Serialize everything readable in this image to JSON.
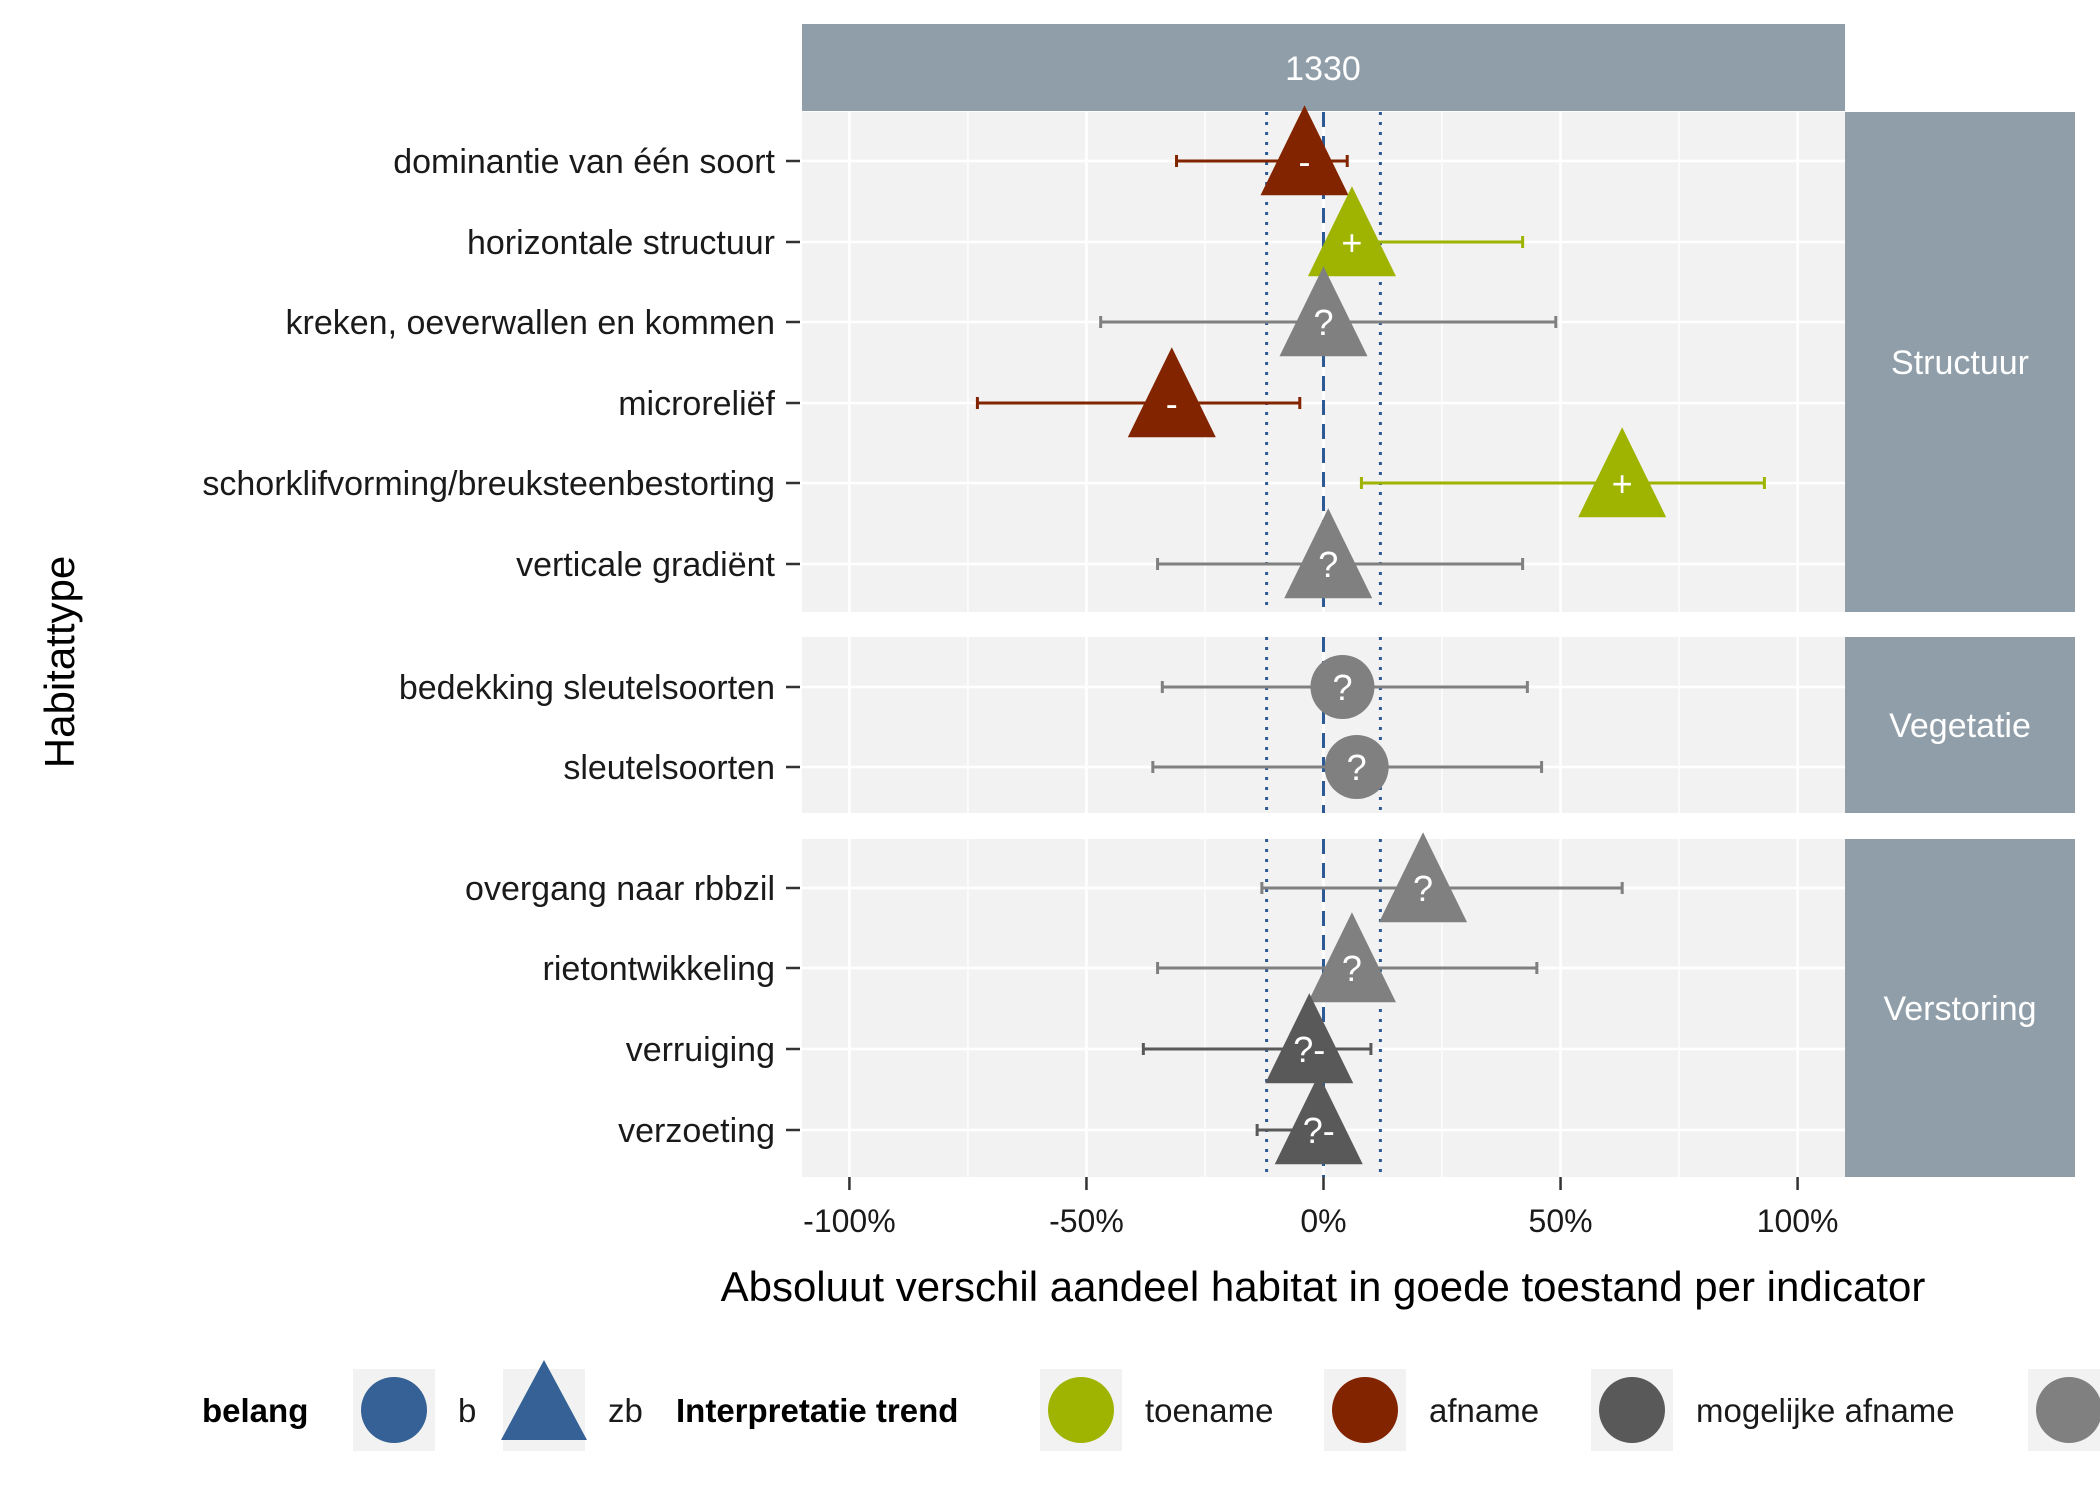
{
  "chart_data": {
    "type": "scatter",
    "facet_label": "1330",
    "xlabel": "Absoluut verschil aandeel habitat in goede toestand per indicator",
    "ylabel": "Habitattype",
    "xlim": [
      -110,
      110
    ],
    "x_ticks": [
      -100,
      -50,
      0,
      50,
      100
    ],
    "x_tick_labels": [
      "-100%",
      "-50%",
      "0%",
      "50%",
      "100%"
    ],
    "reference_lines": {
      "zero": 0,
      "dotted": [
        -12,
        12
      ]
    },
    "colors": {
      "toename": "#9fb400",
      "afname": "#822400",
      "mogelijke afname": "#595959",
      "onbekend": "#808080",
      "belang": "#356196",
      "strip": "#8f9ea9",
      "panel": "#f2f2f2",
      "refline": "#2d5a95"
    },
    "groups": [
      {
        "name": "Structuur",
        "rows": [
          {
            "label": "dominantie van één soort",
            "x": -4,
            "lo": -31,
            "hi": 5,
            "belang": "zb",
            "trend": "afname",
            "symbol": "-"
          },
          {
            "label": "horizontale structuur",
            "x": 6,
            "lo": 6,
            "hi": 42,
            "belang": "zb",
            "trend": "toename",
            "symbol": "+"
          },
          {
            "label": "kreken, oeverwallen en kommen",
            "x": 0,
            "lo": -47,
            "hi": 49,
            "belang": "zb",
            "trend": "onbekend",
            "symbol": "?"
          },
          {
            "label": "microreliëf",
            "x": -32,
            "lo": -73,
            "hi": -5,
            "belang": "zb",
            "trend": "afname",
            "symbol": "-"
          },
          {
            "label": "schorklifvorming/breuksteenbestorting",
            "x": 63,
            "lo": 8,
            "hi": 93,
            "belang": "zb",
            "trend": "toename",
            "symbol": "+"
          },
          {
            "label": "verticale gradiënt",
            "x": 1,
            "lo": -35,
            "hi": 42,
            "belang": "zb",
            "trend": "onbekend",
            "symbol": "?"
          }
        ]
      },
      {
        "name": "Vegetatie",
        "rows": [
          {
            "label": "bedekking sleutelsoorten",
            "x": 4,
            "lo": -34,
            "hi": 43,
            "belang": "b",
            "trend": "onbekend",
            "symbol": "?"
          },
          {
            "label": "sleutelsoorten",
            "x": 7,
            "lo": -36,
            "hi": 46,
            "belang": "b",
            "trend": "onbekend",
            "symbol": "?"
          }
        ]
      },
      {
        "name": "Verstoring",
        "rows": [
          {
            "label": "overgang naar rbbzil",
            "x": 21,
            "lo": -13,
            "hi": 63,
            "belang": "zb",
            "trend": "onbekend",
            "symbol": "?"
          },
          {
            "label": "rietontwikkeling",
            "x": 6,
            "lo": -35,
            "hi": 45,
            "belang": "zb",
            "trend": "onbekend",
            "symbol": "?"
          },
          {
            "label": "verruiging",
            "x": -3,
            "lo": -38,
            "hi": 10,
            "belang": "zb",
            "trend": "mogelijke afname",
            "symbol": "?-"
          },
          {
            "label": "verzoeting",
            "x": -1,
            "lo": -14,
            "hi": 0,
            "belang": "zb",
            "trend": "mogelijke afname",
            "symbol": "?-"
          }
        ]
      }
    ],
    "legend": {
      "belang_title": "belang",
      "belang_items": [
        {
          "label": "b",
          "shape": "circle"
        },
        {
          "label": "zb",
          "shape": "triangle"
        }
      ],
      "trend_title": "Interpretatie trend",
      "trend_items": [
        {
          "label": "toename",
          "key": "toename"
        },
        {
          "label": "afname",
          "key": "afname"
        },
        {
          "label": "mogelijke afname",
          "key": "mogelijke afname"
        },
        {
          "label": "",
          "key": "onbekend"
        }
      ]
    }
  }
}
